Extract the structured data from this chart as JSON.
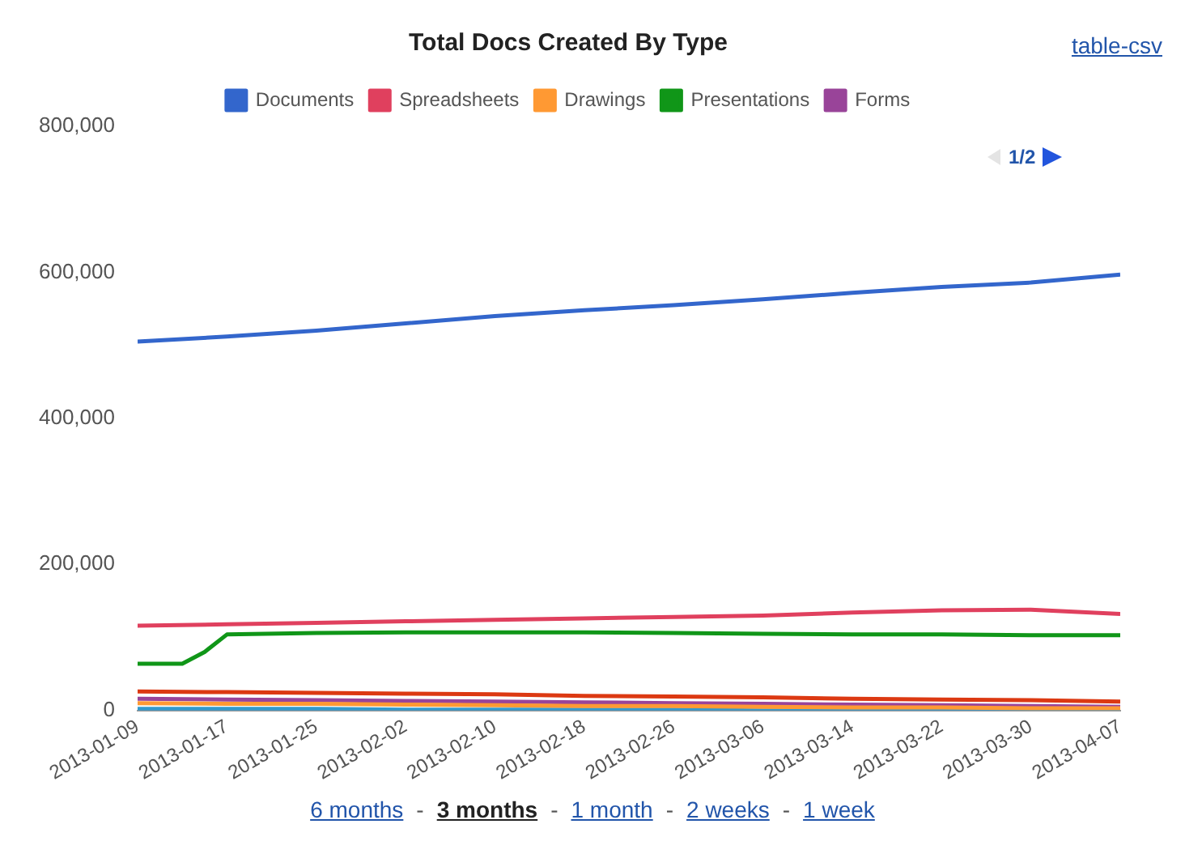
{
  "chart_data": {
    "type": "line",
    "title": "Total Docs Created By Type",
    "x": [
      "2013-01-09",
      "2013-01-17",
      "2013-01-25",
      "2013-02-02",
      "2013-02-10",
      "2013-02-18",
      "2013-02-26",
      "2013-03-06",
      "2013-03-14",
      "2013-03-22",
      "2013-03-30",
      "2013-04-07"
    ],
    "series": [
      {
        "name": "Documents",
        "color": "#3366cc",
        "values": [
          505000,
          512000,
          520000,
          530000,
          540000,
          548000,
          555000,
          563000,
          572000,
          580000,
          586000,
          597000
        ]
      },
      {
        "name": "Spreadsheets",
        "color": "#e0405e",
        "values": [
          116000,
          118000,
          120000,
          122000,
          124000,
          126000,
          128000,
          130000,
          134000,
          137000,
          138000,
          132000
        ]
      },
      {
        "name": "Drawings",
        "color": "#ff9933",
        "values": [
          10000,
          9000,
          9000,
          8000,
          7000,
          6000,
          6000,
          5000,
          4000,
          4000,
          3000,
          3000
        ]
      },
      {
        "name": "Presentations",
        "color": "#109618",
        "x": [
          "2013-01-09",
          "2013-01-13",
          "2013-01-15",
          "2013-01-17",
          "2013-01-25",
          "2013-02-02",
          "2013-02-10",
          "2013-02-18",
          "2013-02-26",
          "2013-03-06",
          "2013-03-14",
          "2013-03-22",
          "2013-03-30",
          "2013-04-07"
        ],
        "values": [
          64000,
          64000,
          80000,
          104000,
          106000,
          107000,
          107000,
          107000,
          106000,
          105000,
          104000,
          104000,
          103000,
          103000
        ]
      },
      {
        "name": "Forms",
        "color": "#994499",
        "values": [
          16000,
          15000,
          14000,
          13000,
          12000,
          11000,
          10000,
          9000,
          8000,
          7000,
          6000,
          5000
        ]
      },
      {
        "color": "#3399cc",
        "values": [
          2000,
          2000,
          2000,
          1000,
          1000,
          1000,
          1000,
          0,
          0,
          0,
          0,
          0
        ]
      },
      {
        "color": "#dc3912",
        "values": [
          26000,
          25000,
          24000,
          23000,
          22000,
          20000,
          19000,
          18000,
          16000,
          15000,
          14000,
          12000
        ]
      }
    ],
    "xlim": [
      "2013-01-09",
      "2013-04-07"
    ],
    "xticks": [
      "2013-01-09",
      "2013-01-17",
      "2013-01-25",
      "2013-02-02",
      "2013-02-10",
      "2013-02-18",
      "2013-02-26",
      "2013-03-06",
      "2013-03-14",
      "2013-03-22",
      "2013-03-30",
      "2013-04-07"
    ],
    "ylim": [
      0,
      800000
    ],
    "yticks": [
      {
        "value": 0,
        "label": "0"
      },
      {
        "value": 200000,
        "label": "200,000"
      },
      {
        "value": 400000,
        "label": "400,000"
      },
      {
        "value": 600000,
        "label": "600,000"
      },
      {
        "value": 800000,
        "label": "800,000"
      }
    ],
    "grid": false,
    "legend": "top",
    "marker": "none",
    "annotations": [
      "table-csv",
      "1/2",
      "6 months",
      "-",
      "3 months",
      "-",
      "1 month",
      "-",
      "2 weeks",
      "-",
      "1 week"
    ]
  }
}
